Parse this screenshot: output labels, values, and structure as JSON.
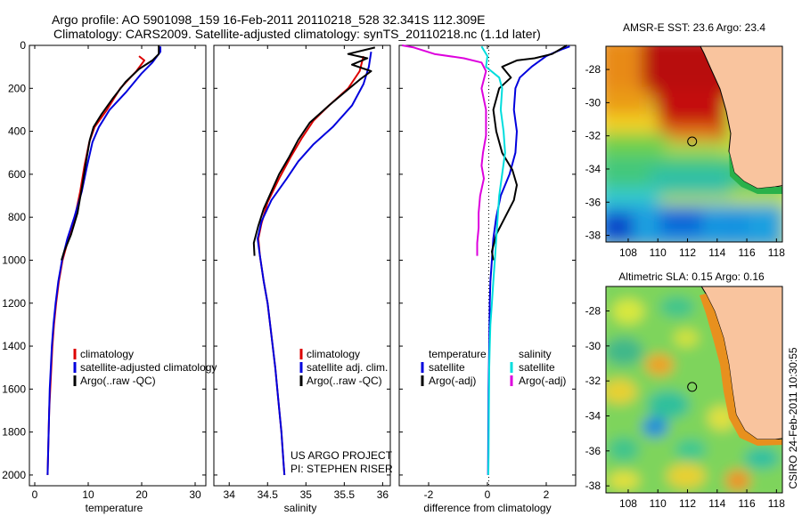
{
  "header": {
    "line1": "Argo profile: AO 5901098_159 16-Feb-2011 20110218_528 32.341S 112.309E",
    "line2": "Climatology: CARS2009. Satellite-adjusted climatology: synTS_20110218.nc (1.1d later)"
  },
  "side_text": "CSIRO 24-Feb-2011 10:30:55",
  "chart_data": [
    {
      "type": "line",
      "id": "temperature",
      "xlabel": "temperature",
      "xlim": [
        -1,
        32
      ],
      "ylim": [
        0,
        2050
      ],
      "y_reversed": true,
      "xticks": [
        0,
        10,
        20,
        30
      ],
      "yticks": [
        0,
        200,
        400,
        600,
        800,
        1000,
        1200,
        1400,
        1600,
        1800,
        2000
      ],
      "legend": [
        "climatology",
        "satellite-adjusted climatology",
        "Argo(..raw -QC)"
      ],
      "series": [
        {
          "name": "climatology",
          "color": "#dd0000",
          "points": [
            [
              19.5,
              50
            ],
            [
              20.5,
              70
            ],
            [
              19,
              120
            ],
            [
              16,
              200
            ],
            [
              13.5,
              300
            ],
            [
              11.2,
              380
            ],
            [
              10.2,
              450
            ],
            [
              9.3,
              560
            ],
            [
              8.5,
              680
            ],
            [
              7.5,
              800
            ],
            [
              6.3,
              900
            ],
            [
              5.2,
              1000
            ],
            [
              4.5,
              1100
            ],
            [
              4.0,
              1200
            ],
            [
              3.6,
              1300
            ],
            [
              3.3,
              1400
            ],
            [
              3.1,
              1500
            ],
            [
              2.9,
              1600
            ],
            [
              2.7,
              1700
            ],
            [
              2.6,
              1800
            ],
            [
              2.5,
              1900
            ],
            [
              2.4,
              2000
            ]
          ]
        },
        {
          "name": "satellite-adjusted climatology",
          "color": "#0000dd",
          "points": [
            [
              23.5,
              5
            ],
            [
              23.5,
              30
            ],
            [
              22,
              80
            ],
            [
              20,
              130
            ],
            [
              17,
              220
            ],
            [
              14,
              300
            ],
            [
              12,
              380
            ],
            [
              10.8,
              450
            ],
            [
              9.8,
              560
            ],
            [
              8.8,
              680
            ],
            [
              7.4,
              800
            ],
            [
              6.1,
              900
            ],
            [
              5.1,
              1000
            ],
            [
              4.4,
              1100
            ],
            [
              3.9,
              1200
            ],
            [
              3.5,
              1300
            ],
            [
              3.2,
              1400
            ],
            [
              3.0,
              1500
            ],
            [
              2.8,
              1600
            ],
            [
              2.7,
              1700
            ],
            [
              2.6,
              1800
            ],
            [
              2.5,
              1900
            ],
            [
              2.4,
              2000
            ]
          ]
        },
        {
          "name": "Argo(..raw -QC)",
          "color": "#000000",
          "points": [
            [
              23.2,
              0
            ],
            [
              23.2,
              40
            ],
            [
              22.0,
              70
            ],
            [
              19.5,
              110
            ],
            [
              17.0,
              170
            ],
            [
              14.5,
              250
            ],
            [
              12.5,
              320
            ],
            [
              11,
              380
            ],
            [
              10.3,
              440
            ],
            [
              9.6,
              540
            ],
            [
              8.9,
              650
            ],
            [
              8.0,
              780
            ],
            [
              6.8,
              880
            ],
            [
              5.5,
              960
            ],
            [
              5.0,
              1000
            ]
          ]
        }
      ]
    },
    {
      "type": "line",
      "id": "salinity",
      "xlabel": "salinity",
      "xlim": [
        33.8,
        36.1
      ],
      "ylim": [
        0,
        2050
      ],
      "y_reversed": true,
      "xticks": [
        34,
        34.5,
        35,
        35.5,
        36
      ],
      "legend": [
        "climatology",
        "satellite adj. clim.",
        "Argo(..raw -QC)"
      ],
      "notes": [
        "US ARGO PROJECT",
        "PI: STEPHEN RISER"
      ],
      "series": [
        {
          "name": "climatology",
          "color": "#dd0000",
          "points": [
            [
              35.75,
              50
            ],
            [
              35.7,
              120
            ],
            [
              35.55,
              200
            ],
            [
              35.3,
              280
            ],
            [
              35.1,
              350
            ],
            [
              34.95,
              430
            ],
            [
              34.8,
              520
            ],
            [
              34.65,
              620
            ],
            [
              34.5,
              730
            ],
            [
              34.42,
              830
            ],
            [
              34.38,
              900
            ],
            [
              34.4,
              980
            ],
            [
              34.45,
              1100
            ],
            [
              34.5,
              1200
            ],
            [
              34.55,
              1350
            ],
            [
              34.6,
              1500
            ],
            [
              34.64,
              1650
            ],
            [
              34.68,
              1800
            ],
            [
              34.71,
              1950
            ],
            [
              34.72,
              2000
            ]
          ]
        },
        {
          "name": "satellite adj. clim.",
          "color": "#0000dd",
          "points": [
            [
              35.85,
              30
            ],
            [
              35.82,
              100
            ],
            [
              35.75,
              180
            ],
            [
              35.6,
              280
            ],
            [
              35.35,
              380
            ],
            [
              35.1,
              460
            ],
            [
              34.9,
              540
            ],
            [
              34.75,
              620
            ],
            [
              34.55,
              720
            ],
            [
              34.42,
              820
            ],
            [
              34.37,
              900
            ],
            [
              34.4,
              980
            ],
            [
              34.45,
              1100
            ],
            [
              34.5,
              1200
            ],
            [
              34.55,
              1350
            ],
            [
              34.6,
              1500
            ],
            [
              34.64,
              1650
            ],
            [
              34.68,
              1800
            ],
            [
              34.71,
              1950
            ],
            [
              34.72,
              2000
            ]
          ]
        },
        {
          "name": "Argo(..raw -QC)",
          "color": "#000000",
          "points": [
            [
              35.9,
              10
            ],
            [
              35.55,
              40
            ],
            [
              35.8,
              60
            ],
            [
              35.6,
              90
            ],
            [
              35.85,
              120
            ],
            [
              35.7,
              160
            ],
            [
              35.5,
              220
            ],
            [
              35.3,
              280
            ],
            [
              35.05,
              360
            ],
            [
              34.9,
              440
            ],
            [
              34.78,
              520
            ],
            [
              34.65,
              600
            ],
            [
              34.55,
              680
            ],
            [
              34.45,
              760
            ],
            [
              34.38,
              840
            ],
            [
              34.32,
              920
            ],
            [
              34.33,
              980
            ]
          ]
        }
      ]
    },
    {
      "type": "line",
      "id": "difference",
      "xlabel": "difference from climatology",
      "xlim": [
        -3,
        3
      ],
      "ylim": [
        0,
        2050
      ],
      "y_reversed": true,
      "xticks": [
        -2,
        0,
        2
      ],
      "legend_temperature": [
        "temperature",
        "satellite",
        "Argo(-adj)"
      ],
      "legend_salinity": [
        "salinity",
        "satellite",
        "Argo(-adj)"
      ],
      "series": [
        {
          "name": "temperature satellite",
          "color": "#0000dd",
          "points": [
            [
              2.8,
              5
            ],
            [
              2.5,
              20
            ],
            [
              2.0,
              50
            ],
            [
              1.5,
              100
            ],
            [
              1.1,
              150
            ],
            [
              0.95,
              200
            ],
            [
              0.9,
              300
            ],
            [
              1.0,
              400
            ],
            [
              0.95,
              500
            ],
            [
              0.75,
              600
            ],
            [
              0.45,
              700
            ],
            [
              0.3,
              800
            ],
            [
              0.2,
              900
            ],
            [
              0.15,
              1000
            ],
            [
              0.1,
              1100
            ],
            [
              0.08,
              1200
            ],
            [
              0.06,
              1400
            ],
            [
              0.04,
              1600
            ],
            [
              0.03,
              1800
            ],
            [
              0.02,
              2000
            ]
          ]
        },
        {
          "name": "temperature Argo(-adj)",
          "color": "#000000",
          "points": [
            [
              2.7,
              0
            ],
            [
              2.2,
              40
            ],
            [
              1.6,
              60
            ],
            [
              1.0,
              70
            ],
            [
              0.5,
              100
            ],
            [
              0.8,
              150
            ],
            [
              0.4,
              200
            ],
            [
              0.2,
              300
            ],
            [
              0.3,
              400
            ],
            [
              0.5,
              500
            ],
            [
              0.85,
              580
            ],
            [
              1.0,
              650
            ],
            [
              0.9,
              720
            ],
            [
              0.6,
              800
            ],
            [
              0.3,
              880
            ],
            [
              0.15,
              960
            ],
            [
              0.2,
              1000
            ]
          ]
        },
        {
          "name": "salinity satellite",
          "color": "#00dddd",
          "points": [
            [
              -0.2,
              5
            ],
            [
              0.0,
              50
            ],
            [
              -0.05,
              100
            ],
            [
              0.4,
              150
            ],
            [
              0.5,
              200
            ],
            [
              0.45,
              300
            ],
            [
              0.55,
              400
            ],
            [
              0.6,
              500
            ],
            [
              0.5,
              600
            ],
            [
              0.4,
              700
            ],
            [
              0.35,
              800
            ],
            [
              0.3,
              900
            ],
            [
              0.25,
              1000
            ],
            [
              0.2,
              1100
            ],
            [
              0.15,
              1200
            ],
            [
              0.1,
              1300
            ],
            [
              0.08,
              1400
            ],
            [
              0.06,
              1500
            ],
            [
              0.05,
              1700
            ],
            [
              0.04,
              1900
            ],
            [
              0.03,
              2000
            ]
          ]
        },
        {
          "name": "salinity Argo(-adj)",
          "color": "#dd00dd",
          "points": [
            [
              -2.9,
              0
            ],
            [
              -2.5,
              10
            ],
            [
              -1.8,
              40
            ],
            [
              -0.8,
              60
            ],
            [
              -0.2,
              80
            ],
            [
              -0.05,
              120
            ],
            [
              -0.2,
              200
            ],
            [
              -0.05,
              300
            ],
            [
              -0.05,
              420
            ],
            [
              -0.15,
              500
            ],
            [
              -0.2,
              560
            ],
            [
              -0.12,
              620
            ],
            [
              -0.25,
              700
            ],
            [
              -0.3,
              780
            ],
            [
              -0.3,
              850
            ],
            [
              -0.35,
              920
            ],
            [
              -0.35,
              980
            ]
          ]
        }
      ]
    },
    {
      "type": "heatmap",
      "id": "sst_map",
      "title": "AMSR-E SST: 23.6 Argo: 23.4",
      "xticks": [
        108,
        110,
        112,
        114,
        116,
        118
      ],
      "yticks": [
        -28,
        -30,
        -32,
        -34,
        -36,
        -38
      ],
      "xlim": [
        106.5,
        118.4
      ],
      "ylim": [
        -38.4,
        -26.6
      ],
      "argo_position": [
        112.309,
        -32.341
      ]
    },
    {
      "type": "heatmap",
      "id": "sla_map",
      "title": "Altimetric SLA: 0.15 Argo: 0.16",
      "xticks": [
        108,
        110,
        112,
        114,
        116,
        118
      ],
      "yticks": [
        -28,
        -30,
        -32,
        -34,
        -36,
        -38
      ],
      "xlim": [
        106.5,
        118.4
      ],
      "ylim": [
        -38.4,
        -26.6
      ],
      "argo_position": [
        112.309,
        -32.341
      ]
    }
  ]
}
